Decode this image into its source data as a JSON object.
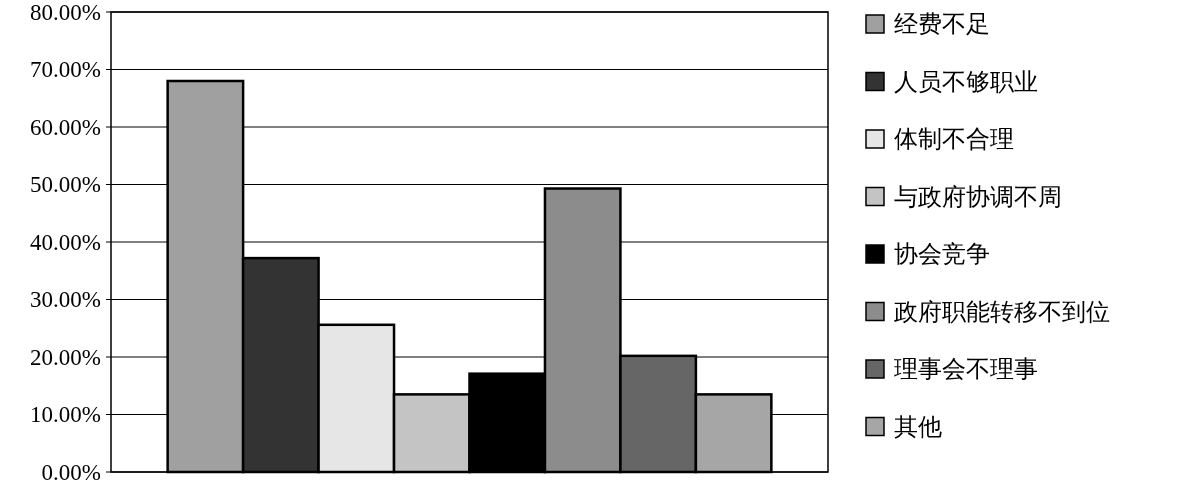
{
  "chart_data": {
    "type": "bar",
    "categories": [
      null
    ],
    "series": [
      {
        "name": "经费不足",
        "color": "#a0a0a0",
        "values": [
          68.0
        ]
      },
      {
        "name": "人员不够职业",
        "color": "#333333",
        "values": [
          37.2
        ]
      },
      {
        "name": "体制不合理",
        "color": "#e6e6e6",
        "values": [
          25.6
        ]
      },
      {
        "name": "与政府协调不周",
        "color": "#c4c4c4",
        "values": [
          13.5
        ]
      },
      {
        "name": "协会竞争",
        "color": "#000000",
        "values": [
          17.1
        ]
      },
      {
        "name": "政府职能转移不到位",
        "color": "#8c8c8c",
        "values": [
          49.3
        ]
      },
      {
        "name": "理事会不理事",
        "color": "#666666",
        "values": [
          20.2
        ]
      },
      {
        "name": "其他",
        "color": "#a6a6a6",
        "values": [
          13.5
        ]
      }
    ],
    "ylim": [
      0,
      80
    ],
    "yticks": [
      {
        "value": 0,
        "label": "0.00%"
      },
      {
        "value": 10,
        "label": "10.00%"
      },
      {
        "value": 20,
        "label": "20.00%"
      },
      {
        "value": 30,
        "label": "30.00%"
      },
      {
        "value": 40,
        "label": "40.00%"
      },
      {
        "value": 50,
        "label": "50.00%"
      },
      {
        "value": 60,
        "label": "60.00%"
      },
      {
        "value": 70,
        "label": "70.00%"
      },
      {
        "value": 80,
        "label": "80.00%"
      }
    ],
    "grid": "y",
    "legend": "right"
  }
}
